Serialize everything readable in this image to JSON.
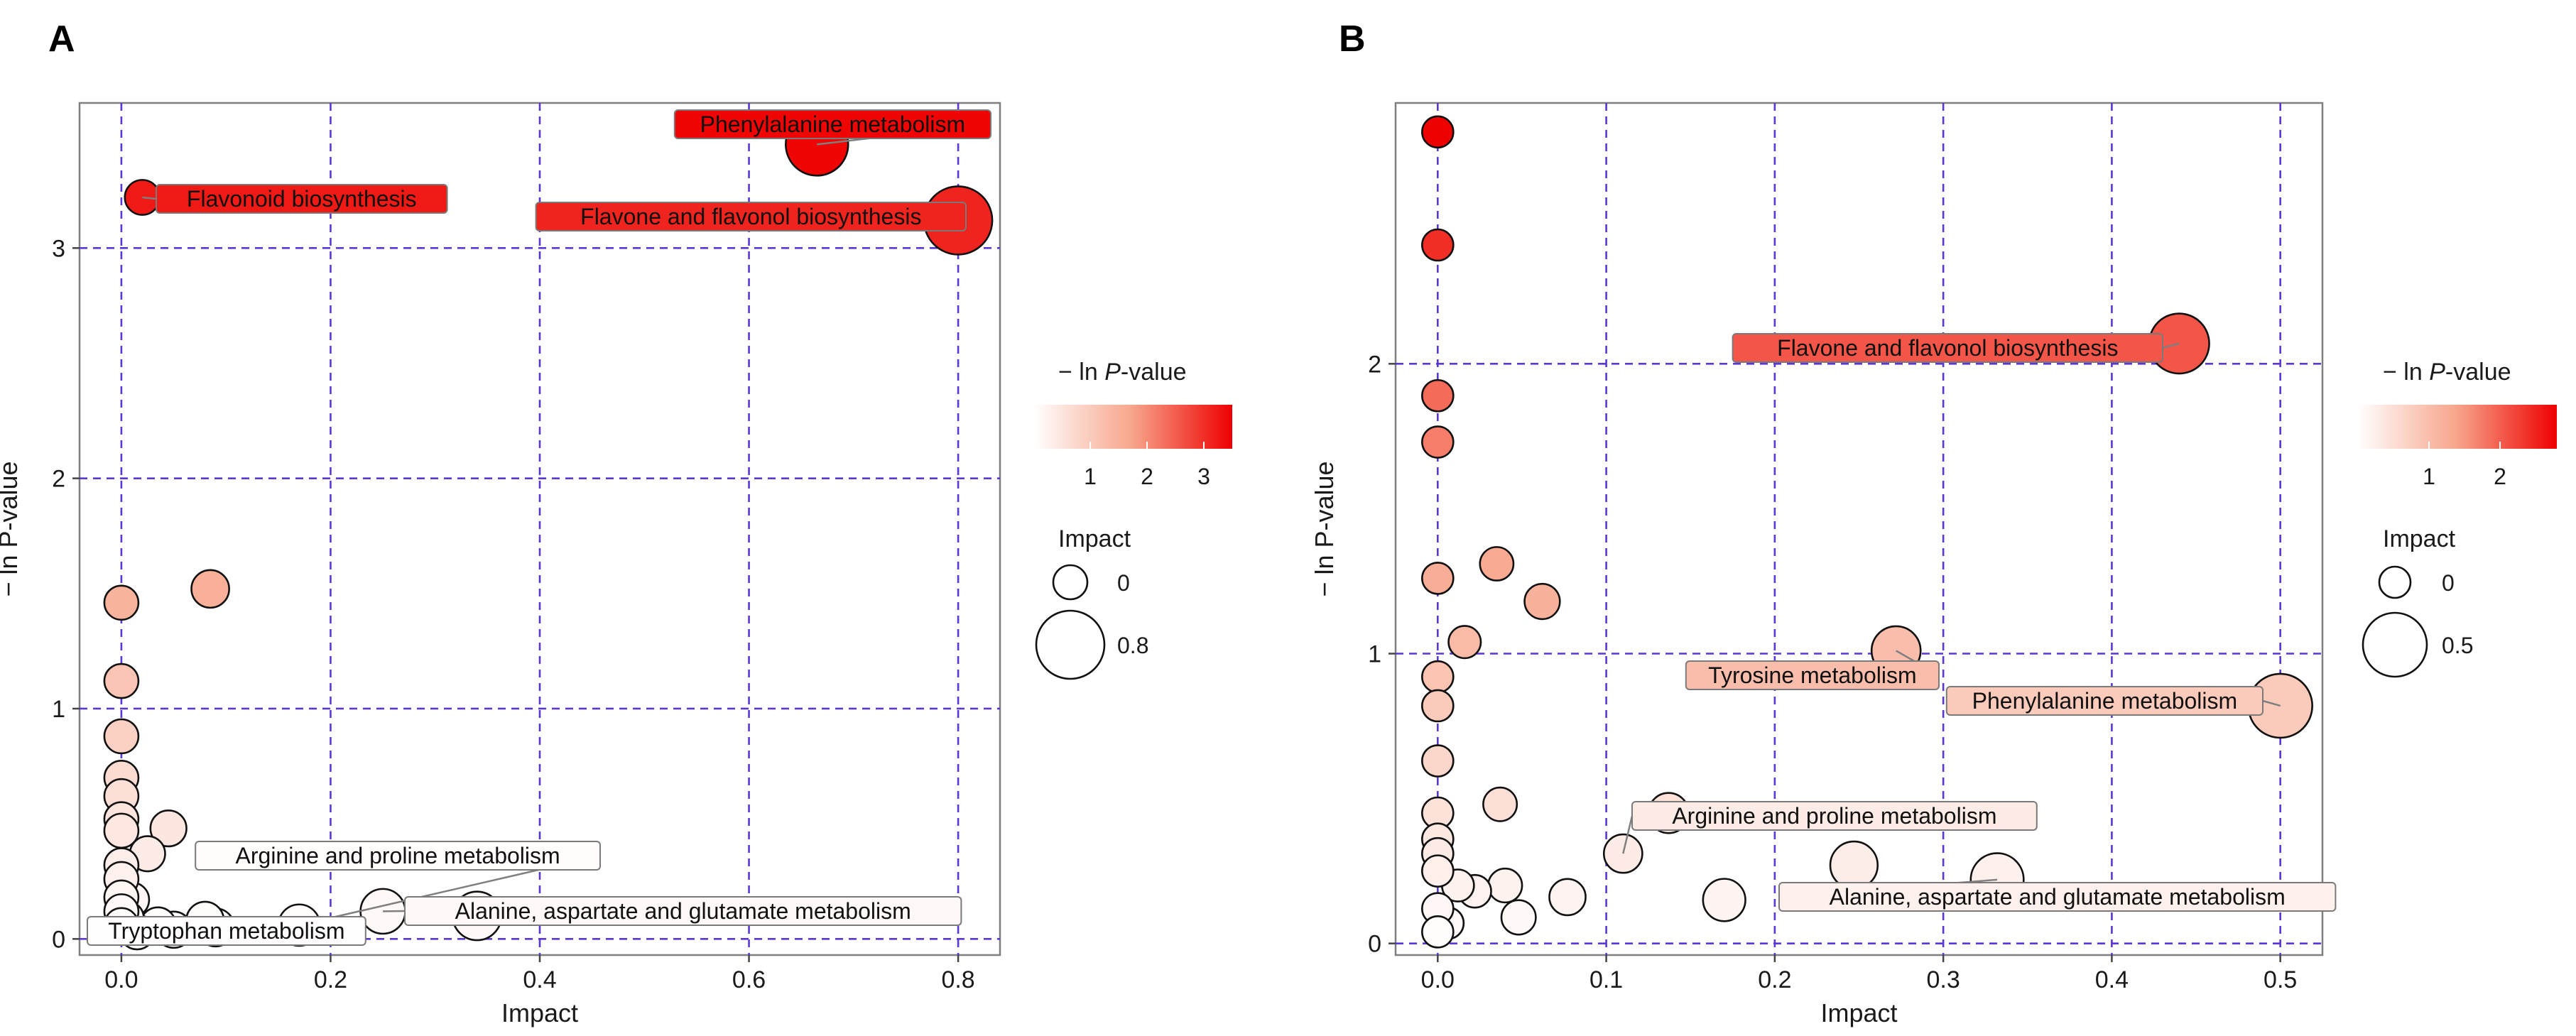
{
  "chart_data": [
    {
      "type": "scatter",
      "panel": "A",
      "xlabel": "Impact",
      "ylabel": "− ln P-value",
      "xlim": [
        -0.04,
        0.84
      ],
      "ylim": [
        -0.07,
        3.63
      ],
      "xticks": [
        0.0,
        0.2,
        0.4,
        0.6,
        0.8
      ],
      "xtick_labels": [
        "0.0",
        "0.2",
        "0.4",
        "0.6",
        "0.8"
      ],
      "yticks": [
        0,
        1,
        2,
        3
      ],
      "ytick_labels": [
        "0",
        "1",
        "2",
        "3"
      ],
      "grid": true,
      "color_range": [
        0,
        3.5
      ],
      "size_range": [
        0,
        0.8
      ],
      "legend": {
        "color_title_prefix": "− ln ",
        "color_title_italic": "P",
        "color_title_suffix": "-value",
        "color_ticks": [
          1,
          2,
          3
        ],
        "color_tick_labels": [
          "1",
          "2",
          "3"
        ],
        "size_title": "Impact",
        "size_values": [
          0,
          0.8
        ],
        "size_labels": [
          "0",
          "0.8"
        ]
      },
      "points": [
        {
          "x": 0.665,
          "y": 3.45,
          "label": "Phenylalanine metabolism"
        },
        {
          "x": 0.8,
          "y": 3.12,
          "label": "Flavone and flavonol biosynthesis"
        },
        {
          "x": 0.02,
          "y": 3.22,
          "label": "Flavonoid biosynthesis"
        },
        {
          "x": 0.085,
          "y": 1.52
        },
        {
          "x": 0.0,
          "y": 1.46
        },
        {
          "x": 0.0,
          "y": 1.12
        },
        {
          "x": 0.0,
          "y": 0.88
        },
        {
          "x": 0.0,
          "y": 0.7
        },
        {
          "x": 0.0,
          "y": 0.62
        },
        {
          "x": 0.0,
          "y": 0.52
        },
        {
          "x": 0.0,
          "y": 0.47
        },
        {
          "x": 0.045,
          "y": 0.48
        },
        {
          "x": 0.025,
          "y": 0.37
        },
        {
          "x": 0.0,
          "y": 0.32
        },
        {
          "x": 0.0,
          "y": 0.26
        },
        {
          "x": 0.0,
          "y": 0.18
        },
        {
          "x": 0.01,
          "y": 0.17
        },
        {
          "x": 0.0,
          "y": 0.12
        },
        {
          "x": 0.005,
          "y": 0.09
        },
        {
          "x": 0.0,
          "y": 0.06
        },
        {
          "x": 0.035,
          "y": 0.06
        },
        {
          "x": 0.05,
          "y": 0.04
        },
        {
          "x": 0.08,
          "y": 0.08
        },
        {
          "x": 0.09,
          "y": 0.05
        },
        {
          "x": 0.17,
          "y": 0.06,
          "label": "Arginine and proline metabolism"
        },
        {
          "x": 0.25,
          "y": 0.12,
          "label": "Alanine, aspartate and glutamate metabolism"
        },
        {
          "x": 0.34,
          "y": 0.1
        },
        {
          "x": 0.015,
          "y": 0.03,
          "label": "Tryptophan metabolism"
        }
      ]
    },
    {
      "type": "scatter",
      "panel": "B",
      "xlabel": "Impact",
      "ylabel": "− ln P-value",
      "xlim": [
        -0.025,
        0.525
      ],
      "ylim": [
        -0.04,
        2.9
      ],
      "xticks": [
        0.0,
        0.1,
        0.2,
        0.3,
        0.4,
        0.5
      ],
      "xtick_labels": [
        "0.0",
        "0.1",
        "0.2",
        "0.3",
        "0.4",
        "0.5"
      ],
      "yticks": [
        0,
        1,
        2
      ],
      "ytick_labels": [
        "0",
        "1",
        "2"
      ],
      "grid": true,
      "color_range": [
        0,
        2.8
      ],
      "size_range": [
        0,
        0.5
      ],
      "legend": {
        "color_title_prefix": "− ln ",
        "color_title_italic": "P",
        "color_title_suffix": "-value",
        "color_ticks": [
          1,
          2
        ],
        "color_tick_labels": [
          "1",
          "2"
        ],
        "size_title": "Impact",
        "size_values": [
          0,
          0.5
        ],
        "size_labels": [
          "0",
          "0.5"
        ]
      },
      "points": [
        {
          "x": 0.0,
          "y": 2.8
        },
        {
          "x": 0.0,
          "y": 2.41
        },
        {
          "x": 0.44,
          "y": 2.07,
          "label": "Flavone and flavonol biosynthesis"
        },
        {
          "x": 0.0,
          "y": 1.89
        },
        {
          "x": 0.0,
          "y": 1.73
        },
        {
          "x": 0.035,
          "y": 1.31
        },
        {
          "x": 0.0,
          "y": 1.26
        },
        {
          "x": 0.062,
          "y": 1.18
        },
        {
          "x": 0.016,
          "y": 1.04
        },
        {
          "x": 0.272,
          "y": 1.01,
          "label": "Tyrosine metabolism"
        },
        {
          "x": 0.0,
          "y": 0.92
        },
        {
          "x": 0.5,
          "y": 0.82,
          "label": "Phenylalanine metabolism"
        },
        {
          "x": 0.0,
          "y": 0.82
        },
        {
          "x": 0.0,
          "y": 0.63
        },
        {
          "x": 0.037,
          "y": 0.48
        },
        {
          "x": 0.0,
          "y": 0.45
        },
        {
          "x": 0.137,
          "y": 0.45
        },
        {
          "x": 0.0,
          "y": 0.36
        },
        {
          "x": 0.0,
          "y": 0.31
        },
        {
          "x": 0.11,
          "y": 0.31,
          "label": "Arginine and proline metabolism"
        },
        {
          "x": 0.247,
          "y": 0.27
        },
        {
          "x": 0.0,
          "y": 0.25
        },
        {
          "x": 0.332,
          "y": 0.22,
          "label": "Alanine, aspartate and glutamate metabolism"
        },
        {
          "x": 0.012,
          "y": 0.2
        },
        {
          "x": 0.022,
          "y": 0.18
        },
        {
          "x": 0.04,
          "y": 0.2
        },
        {
          "x": 0.077,
          "y": 0.16
        },
        {
          "x": 0.0,
          "y": 0.12
        },
        {
          "x": 0.17,
          "y": 0.15
        },
        {
          "x": 0.006,
          "y": 0.07
        },
        {
          "x": 0.048,
          "y": 0.09
        },
        {
          "x": 0.0,
          "y": 0.04
        }
      ]
    }
  ]
}
